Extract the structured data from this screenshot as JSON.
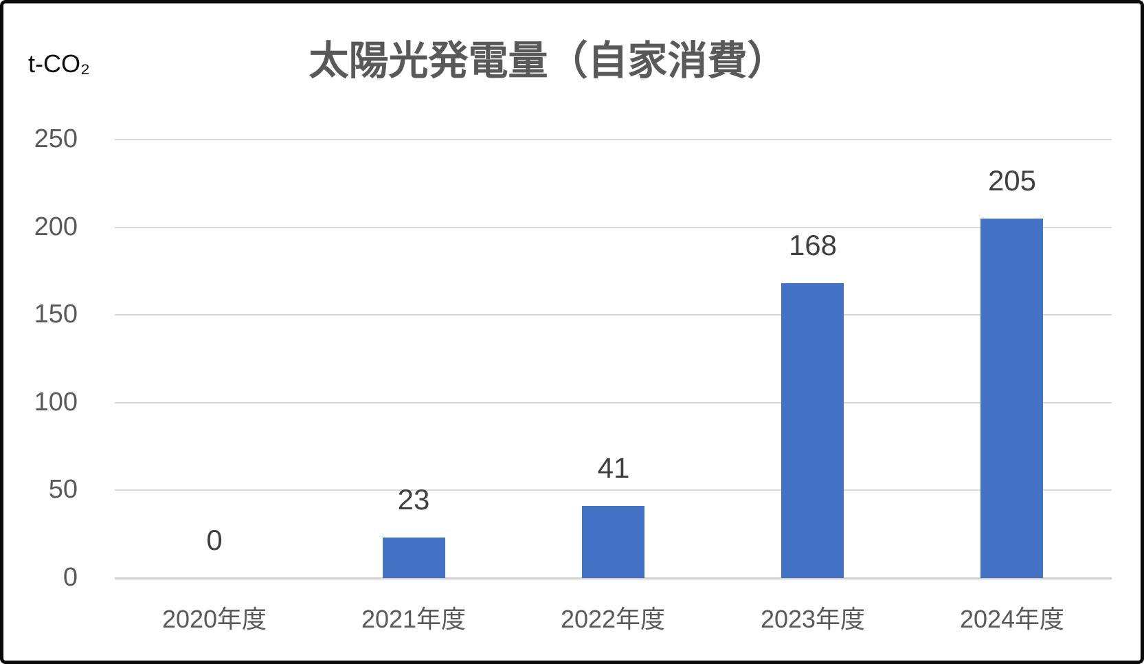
{
  "chart_data": {
    "type": "bar",
    "title": "太陽光発電量（自家消費）",
    "ylabel": "t-CO₂",
    "xlabel": "",
    "categories": [
      "2020年度",
      "2021年度",
      "2022年度",
      "2023年度",
      "2024年度"
    ],
    "values": [
      0,
      23,
      41,
      168,
      205
    ],
    "y_ticks": [
      0,
      50,
      100,
      150,
      200,
      250
    ],
    "ylim": [
      0,
      250
    ],
    "grid": true,
    "legend": false,
    "data_labels_shown": true
  },
  "colors": {
    "bar": "#4472c4",
    "title_text": "#595959",
    "axis_text": "#595959",
    "data_label_text": "#404040",
    "unit_text": "#0d0d0d",
    "gridline": "#d9d9d9",
    "axis_line": "#d0cece",
    "frame_border": "#0a0a0a",
    "background": "#ffffff"
  }
}
